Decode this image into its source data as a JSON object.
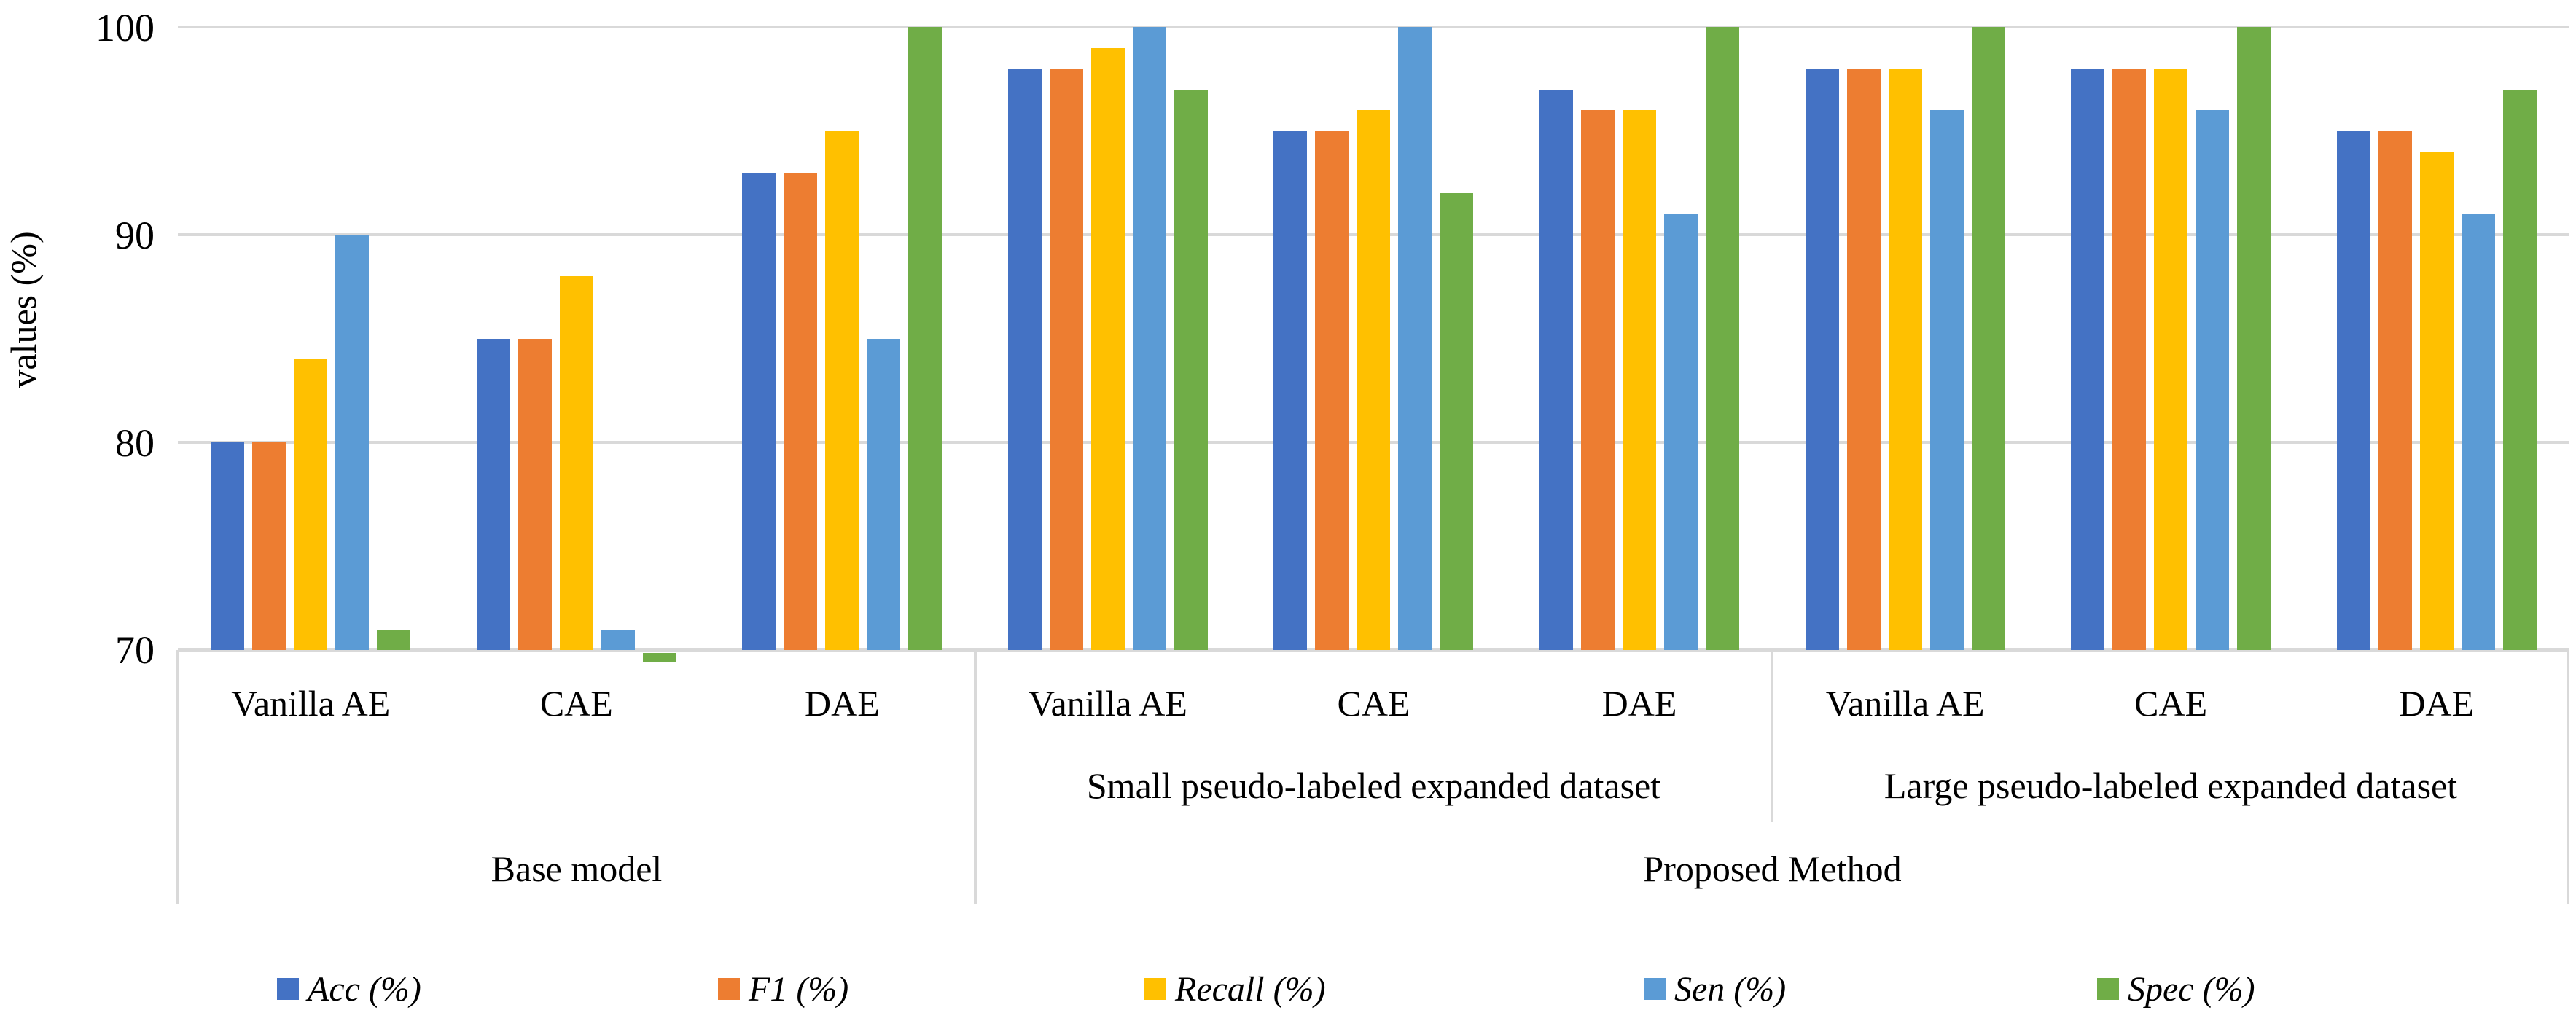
{
  "chart_data": {
    "type": "bar",
    "title": "",
    "xlabel": "",
    "ylabel": "values (%)",
    "ylim": [
      70,
      100
    ],
    "yticks": [
      "100",
      "90",
      "80",
      "70"
    ],
    "grid": true,
    "legend_position": "bottom",
    "categories": [
      "Vanilla AE",
      "CAE",
      "DAE",
      "Vanilla AE",
      "CAE",
      "DAE",
      "Vanilla AE",
      "CAE",
      "DAE"
    ],
    "series": [
      {
        "name": "Acc (%)",
        "color": "#4472C4",
        "values": [
          80,
          85,
          93,
          98,
          95,
          97,
          98,
          98,
          95
        ]
      },
      {
        "name": "F1 (%)",
        "color": "#ED7D31",
        "values": [
          80,
          85,
          93,
          98,
          95,
          96,
          98,
          98,
          95
        ]
      },
      {
        "name": "Recall (%)",
        "color": "#FFC000",
        "values": [
          84,
          88,
          95,
          99,
          96,
          96,
          98,
          98,
          94
        ]
      },
      {
        "name": "Sen (%)",
        "color": "#5B9BD5",
        "values": [
          90,
          71,
          85,
          100,
          100,
          91,
          96,
          96,
          91
        ]
      },
      {
        "name": "Spec (%)",
        "color": "#70AD47",
        "values": [
          71,
          70,
          100,
          97,
          92,
          100,
          100,
          100,
          97
        ]
      }
    ],
    "x_axis_levels": {
      "datasets": [
        {
          "label": "Small pseudo-labeled expanded dataset",
          "spans_categories": [
            3,
            5
          ]
        },
        {
          "label": "Large pseudo-labeled expanded dataset",
          "spans_categories": [
            6,
            8
          ]
        }
      ],
      "methods": [
        {
          "label": "Base model",
          "spans_categories": [
            0,
            2
          ]
        },
        {
          "label": "Proposed Method",
          "spans_categories": [
            3,
            8
          ]
        }
      ]
    },
    "gridline_color": "#D9D9D9"
  }
}
